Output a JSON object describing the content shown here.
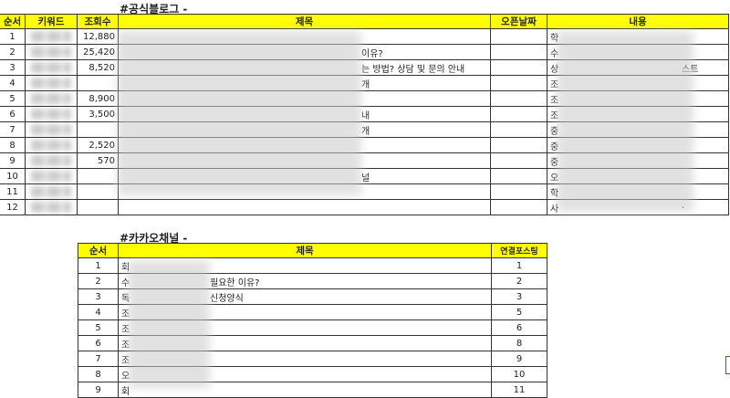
{
  "blog": {
    "title": "#공식블로그 -",
    "headers": [
      "순서",
      "키워드",
      "조회수",
      "제목",
      "오픈날짜",
      "내용"
    ],
    "rows": [
      {
        "no": "1",
        "views": "12,880",
        "title_tail": "",
        "open": "",
        "content_head": "학",
        "content_tail": ""
      },
      {
        "no": "2",
        "views": "25,420",
        "title_tail": "이유?",
        "open": "",
        "content_head": "수",
        "content_tail": ""
      },
      {
        "no": "3",
        "views": "8,520",
        "title_tail": "는 방법? 상담 및 문의 안내",
        "open": "",
        "content_head": "상",
        "content_tail": "스트"
      },
      {
        "no": "4",
        "views": "",
        "title_tail": "개",
        "open": "",
        "content_head": "조",
        "content_tail": ""
      },
      {
        "no": "5",
        "views": "8,900",
        "title_tail": "",
        "open": "",
        "content_head": "조",
        "content_tail": ""
      },
      {
        "no": "6",
        "views": "3,500",
        "title_tail": "내",
        "open": "",
        "content_head": "조",
        "content_tail": ""
      },
      {
        "no": "7",
        "views": "",
        "title_tail": "개",
        "open": "",
        "content_head": "중",
        "content_tail": ""
      },
      {
        "no": "8",
        "views": "2,520",
        "title_tail": "",
        "open": "",
        "content_head": "중",
        "content_tail": ""
      },
      {
        "no": "9",
        "views": "570",
        "title_tail": "",
        "open": "",
        "content_head": "중",
        "content_tail": ""
      },
      {
        "no": "10",
        "views": "",
        "title_tail": "널",
        "open": "",
        "content_head": "오",
        "content_tail": ""
      },
      {
        "no": "11",
        "views": "",
        "title_tail": "",
        "open": "",
        "content_head": "학",
        "content_tail": ""
      },
      {
        "no": "12",
        "views": "",
        "title_tail": "",
        "open": "",
        "content_head": "사",
        "content_tail": "."
      }
    ]
  },
  "kakao": {
    "title": "#카카오채널 -",
    "headers": [
      "순서",
      "제목",
      "연결포스팅"
    ],
    "rows": [
      {
        "no": "1",
        "head": "회",
        "tail": "",
        "link": "1"
      },
      {
        "no": "2",
        "head": "수",
        "tail": "필요한 이유?",
        "link": "2"
      },
      {
        "no": "3",
        "head": "독",
        "tail": "신청양식",
        "link": "3"
      },
      {
        "no": "4",
        "head": "조",
        "tail": "",
        "link": "5"
      },
      {
        "no": "5",
        "head": "조",
        "tail": "",
        "link": "6"
      },
      {
        "no": "6",
        "head": "조",
        "tail": "",
        "link": "8"
      },
      {
        "no": "7",
        "head": "조",
        "tail": "",
        "link": "9"
      },
      {
        "no": "8",
        "head": "오",
        "tail": "",
        "link": "10"
      },
      {
        "no": "9",
        "head": "회",
        "tail": "",
        "link": "11"
      }
    ]
  },
  "colors": {
    "header_bg": "#ffff00",
    "border": "#333333"
  }
}
